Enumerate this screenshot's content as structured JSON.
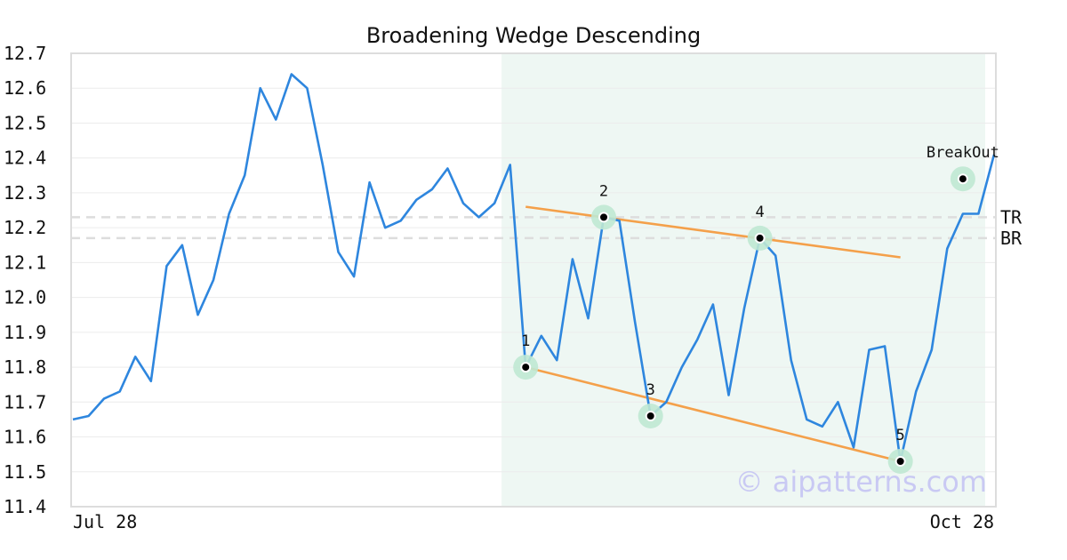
{
  "chart_data": {
    "type": "line",
    "title": "Broadening Wedge Descending",
    "xlabel": "",
    "ylabel": "",
    "x_tick_labels": [
      "Jul 28",
      "Oct 28"
    ],
    "y_ticks": [
      12.7,
      12.6,
      12.5,
      12.4,
      12.3,
      12.2,
      12.1,
      12.0,
      11.9,
      11.8,
      11.7,
      11.6,
      11.5,
      11.4
    ],
    "ylim": [
      11.4,
      12.7
    ],
    "grid": true,
    "series": [
      {
        "values": [
          11.65,
          11.66,
          11.71,
          11.73,
          11.83,
          11.76,
          12.09,
          12.15,
          11.95,
          12.05,
          12.24,
          12.35,
          12.6,
          12.51,
          12.64,
          12.6,
          12.38,
          12.13,
          12.06,
          12.33,
          12.2,
          12.22,
          12.28,
          12.31,
          12.37,
          12.27,
          12.23,
          12.27,
          12.38,
          11.8,
          11.89,
          11.82,
          12.11,
          11.94,
          12.23,
          12.22,
          11.93,
          11.66,
          11.7,
          11.8,
          11.88,
          11.98,
          11.72,
          11.97,
          12.17,
          12.12,
          11.82,
          11.65,
          11.63,
          11.7,
          11.57,
          11.85,
          11.86,
          11.53,
          11.73,
          11.85,
          12.14,
          12.24,
          12.24,
          12.41
        ],
        "color": "#2e86de"
      }
    ],
    "pattern_window": {
      "start_index": 27,
      "end_index": 59
    },
    "pattern_points": [
      {
        "label": "1",
        "index": 29,
        "value": 11.8
      },
      {
        "label": "2",
        "index": 34,
        "value": 12.23
      },
      {
        "label": "3",
        "index": 37,
        "value": 11.66
      },
      {
        "label": "4",
        "index": 44,
        "value": 12.17
      },
      {
        "label": "5",
        "index": 53,
        "value": 11.53
      }
    ],
    "breakout": {
      "label": "BreakOut",
      "index": 57,
      "value": 12.34
    },
    "trend_lines": [
      {
        "from_index": 29,
        "from_value": 12.26,
        "to_index": 53,
        "to_value": 12.115
      },
      {
        "from_index": 29,
        "from_value": 11.8,
        "to_index": 53,
        "to_value": 11.53
      }
    ],
    "levels": [
      {
        "label": "TR",
        "value": 12.23
      },
      {
        "label": "BR",
        "value": 12.17
      }
    ],
    "colors": {
      "line": "#2e86de",
      "trend": "#f4a04a",
      "window": "#eef7f3",
      "marker_halo": "#bfe8d3",
      "level": "#dddddd"
    },
    "watermark": "© aipatterns.com"
  }
}
